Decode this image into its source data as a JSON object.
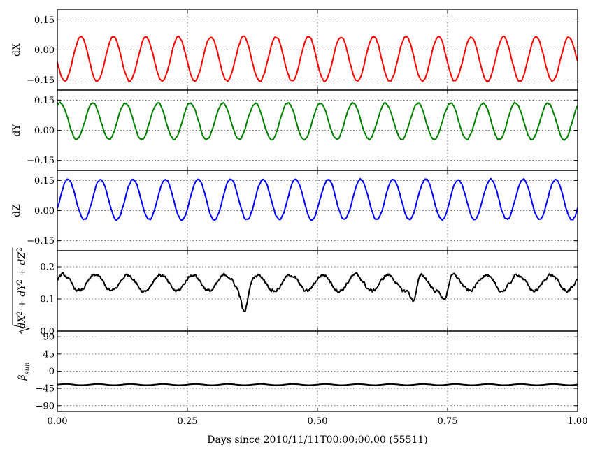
{
  "chart_data": [
    {
      "type": "line",
      "panel": "dX",
      "ylabel": "dX",
      "color": "#ff0000",
      "ylim": [
        -0.2,
        0.2
      ],
      "yticks": [
        "0.15",
        "0.00",
        "−0.15"
      ],
      "yticks_values": [
        0.15,
        0.0,
        -0.15
      ],
      "series": [
        {
          "values_model": "periodic",
          "mean": -0.045,
          "amplitude": 0.11,
          "cycles": 16,
          "phase": 3.3,
          "start_value": -0.13,
          "end_value": 0.05,
          "x": [
            0.0,
            1.0
          ]
        }
      ]
    },
    {
      "type": "line",
      "panel": "dY",
      "ylabel": "dY",
      "color": "#008000",
      "ylim": [
        -0.2,
        0.2
      ],
      "yticks": [
        "0.15",
        "0.00",
        "−0.15"
      ],
      "yticks_values": [
        0.15,
        0.0,
        -0.15
      ],
      "series": [
        {
          "values_model": "periodic",
          "mean": 0.045,
          "amplitude": 0.09,
          "cycles": 16,
          "phase": 1.0,
          "start_value": 0.05,
          "end_value": 0.11,
          "x": [
            0.0,
            1.0
          ]
        }
      ]
    },
    {
      "type": "line",
      "panel": "dZ",
      "ylabel": "dZ",
      "color": "#0000ff",
      "ylim": [
        -0.2,
        0.2
      ],
      "yticks": [
        "0.15",
        "0.00",
        "−0.15"
      ],
      "yticks_values": [
        0.15,
        0.0,
        -0.15
      ],
      "series": [
        {
          "values_model": "periodic",
          "mean": 0.055,
          "amplitude": 0.1,
          "cycles": 16,
          "phase": 5.8,
          "start_value": 0.02,
          "end_value": 0.03,
          "x": [
            0.0,
            1.0
          ]
        }
      ]
    },
    {
      "type": "line",
      "panel": "norm",
      "ylabel": "sqrt(dX^2 + dY^2 + dZ^2)",
      "color": "#000000",
      "ylim": [
        0.0,
        0.25
      ],
      "yticks": [
        "0.2",
        "0.1",
        "0.0"
      ],
      "yticks_values": [
        0.2,
        0.1,
        0.0
      ],
      "series": [
        {
          "values_model": "periodic",
          "mean": 0.15,
          "amplitude": 0.025,
          "cycles": 16,
          "phase": 0.5,
          "dips": [
            {
              "x": 0.36,
              "value": 0.08
            },
            {
              "x": 0.685,
              "value": 0.09
            },
            {
              "x": 0.745,
              "value": 0.1
            }
          ],
          "x": [
            0.0,
            1.0
          ]
        }
      ]
    },
    {
      "type": "line",
      "panel": "beta_sun",
      "ylabel": "βsun",
      "color": "#000000",
      "ylim": [
        -105,
        105
      ],
      "yticks": [
        "90",
        "45",
        "0",
        "−45",
        "−90"
      ],
      "yticks_values": [
        90,
        45,
        0,
        -45,
        -90
      ],
      "series": [
        {
          "values_model": "periodic",
          "mean": -35,
          "amplitude": 1.5,
          "cycles": 16,
          "phase": 0.0,
          "x": [
            0.0,
            1.0
          ]
        }
      ]
    }
  ],
  "xaxis": {
    "label": "Days since 2010/11/11T00:00:00.00 (55511)",
    "xlim": [
      0.0,
      1.0
    ],
    "ticks": [
      "0.00",
      "0.25",
      "0.50",
      "0.75",
      "1.00"
    ],
    "ticks_values": [
      0.0,
      0.25,
      0.5,
      0.75,
      1.0
    ]
  },
  "grid": true
}
